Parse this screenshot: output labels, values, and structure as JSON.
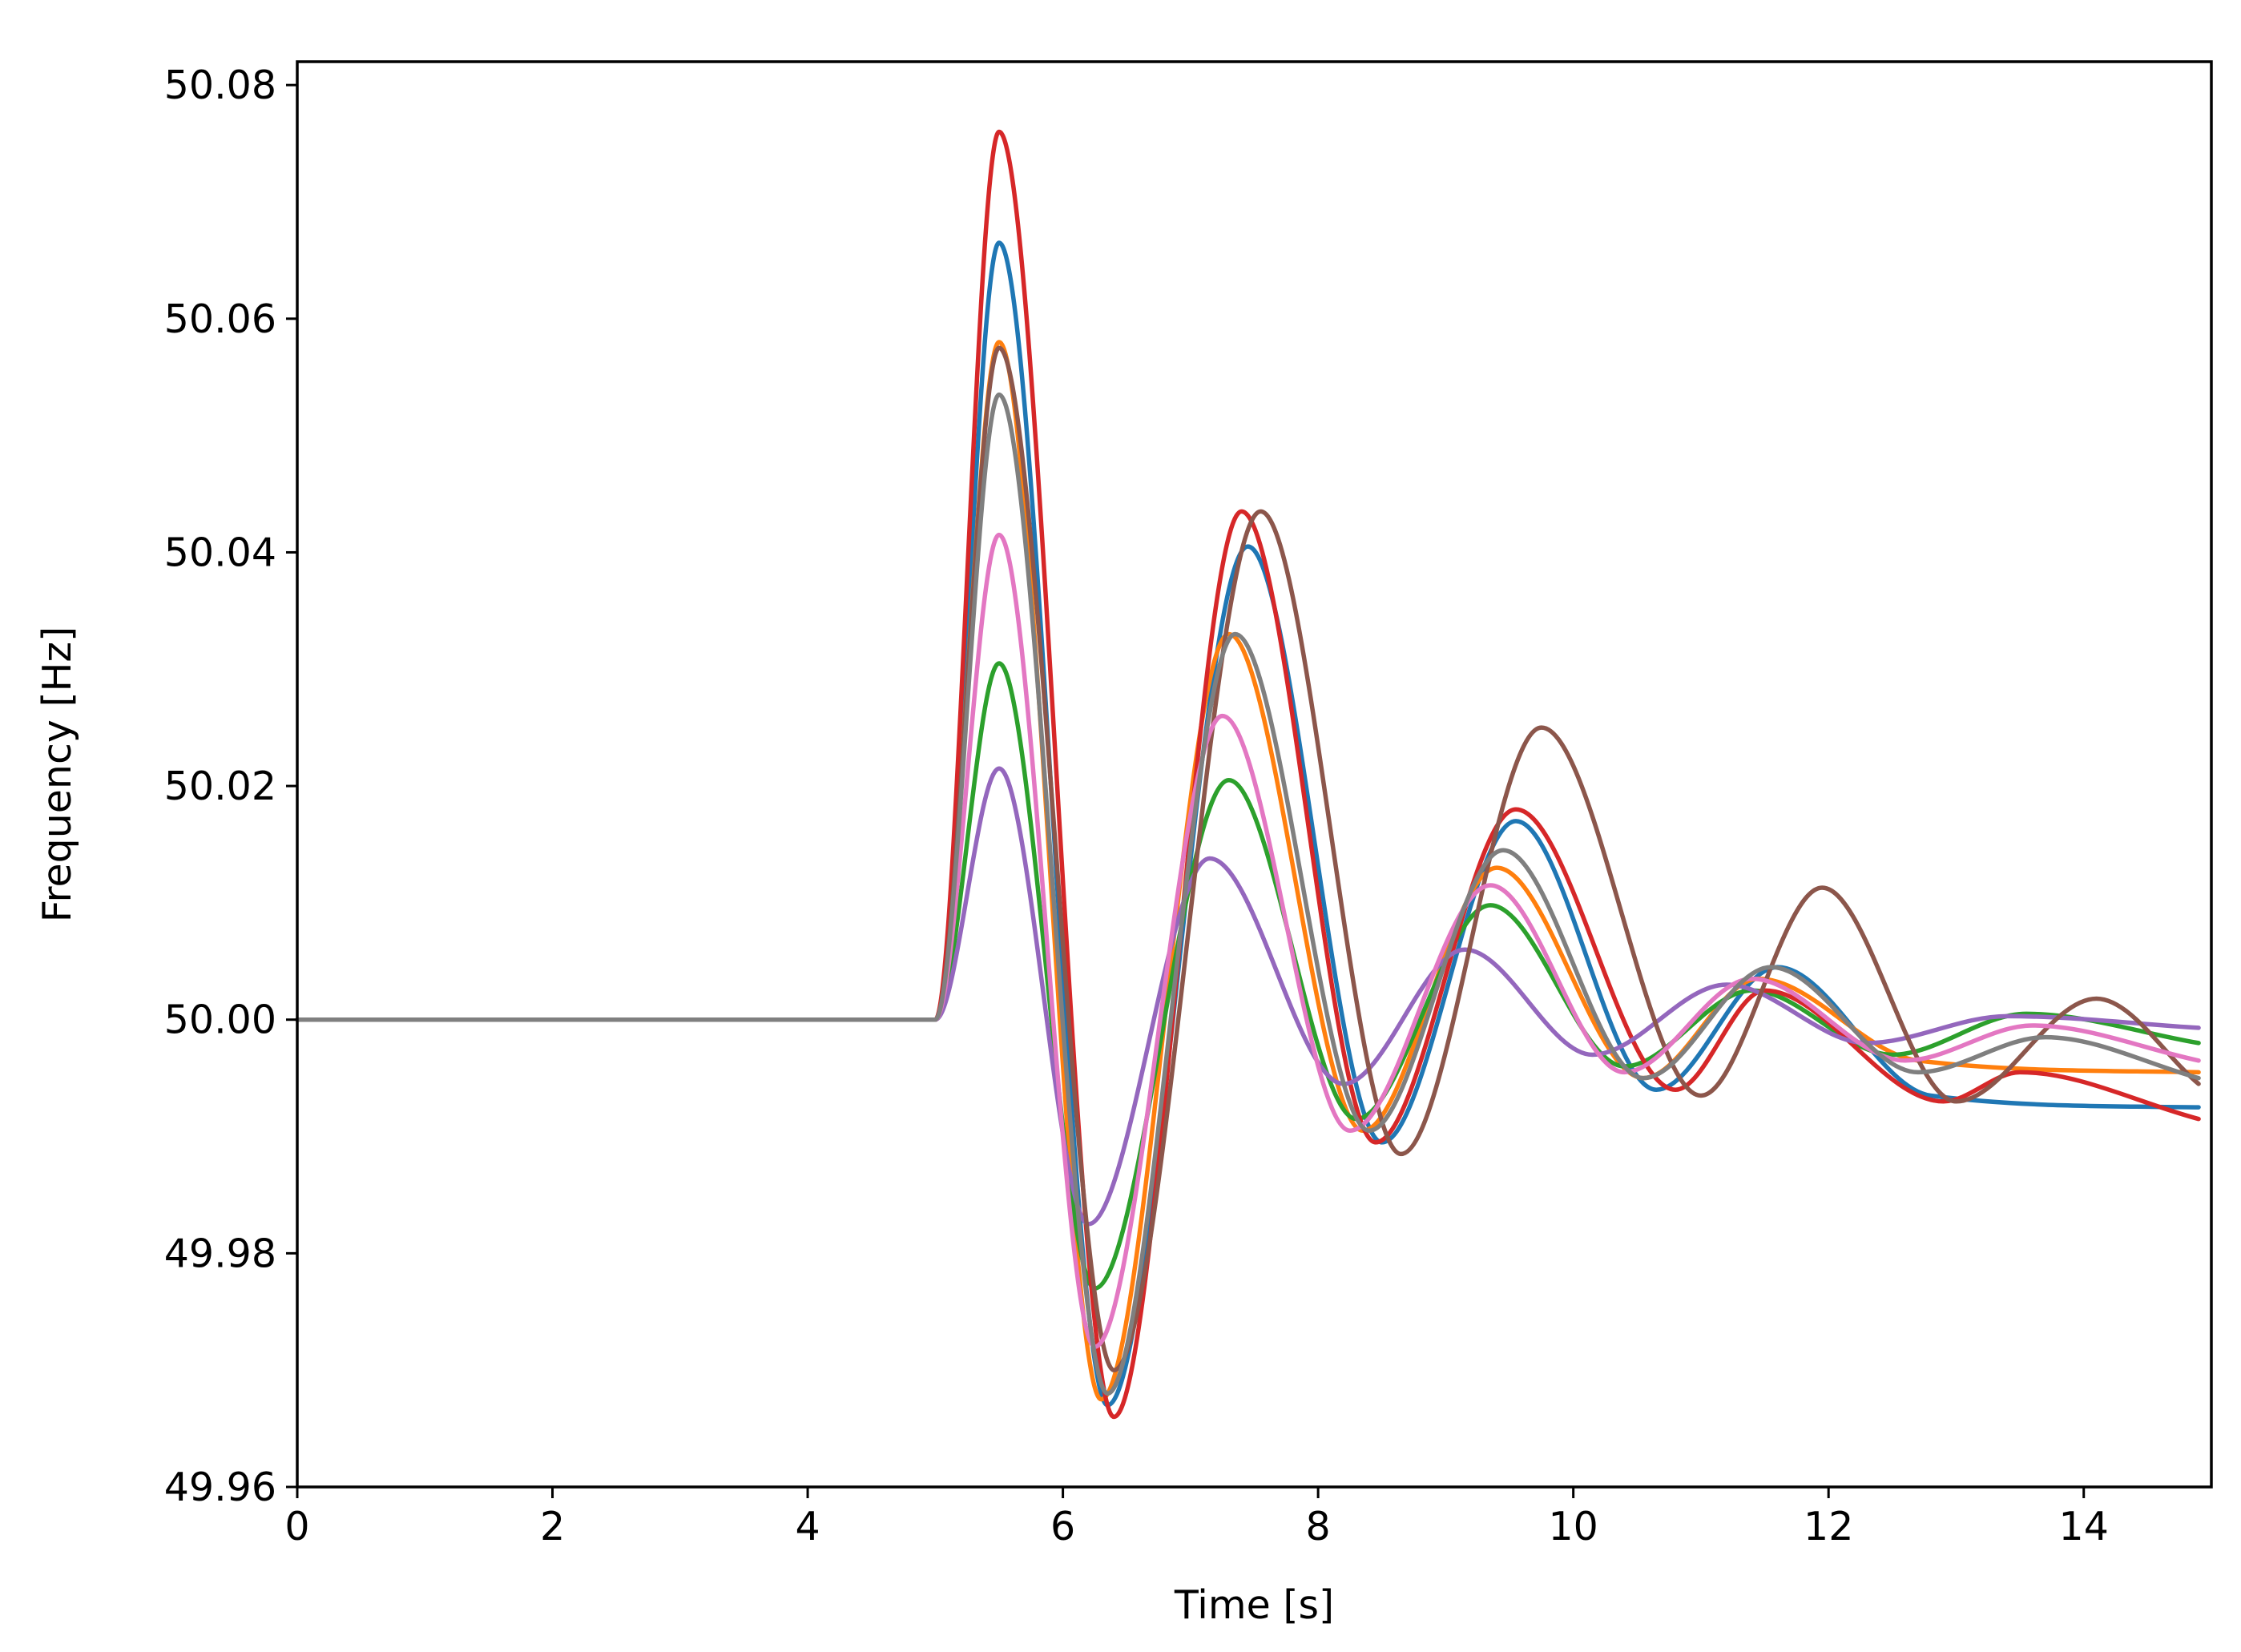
{
  "chart_data": {
    "type": "line",
    "xlabel": "Time [s]",
    "ylabel": "Frequency [Hz]",
    "xlim": [
      0,
      15
    ],
    "ylim": [
      49.96,
      50.082
    ],
    "xticks": [
      0,
      2,
      4,
      6,
      8,
      10,
      12,
      14
    ],
    "xtick_labels": [
      "0",
      "2",
      "4",
      "6",
      "8",
      "10",
      "12",
      "14"
    ],
    "yticks": [
      49.96,
      49.98,
      50.0,
      50.02,
      50.04,
      50.06,
      50.08
    ],
    "ytick_labels": [
      "49.96",
      "49.98",
      "50.00",
      "50.02",
      "50.04",
      "50.06",
      "50.08"
    ],
    "grid": false,
    "legend": "none",
    "series": [
      {
        "color": "#1f77b4",
        "points": [
          [
            0,
            50.0
          ],
          [
            5.0,
            50.0
          ],
          [
            5.5,
            50.0665
          ],
          [
            6.35,
            49.967
          ],
          [
            7.45,
            50.0405
          ],
          [
            8.5,
            49.9895
          ],
          [
            9.55,
            50.017
          ],
          [
            10.65,
            49.994
          ],
          [
            11.6,
            50.0045
          ],
          [
            12.8,
            49.9935
          ],
          [
            14.9,
            49.9925
          ]
        ]
      },
      {
        "color": "#ff7f0e",
        "points": [
          [
            0,
            50.0
          ],
          [
            5.0,
            50.0
          ],
          [
            5.5,
            50.058
          ],
          [
            6.3,
            49.9675
          ],
          [
            7.3,
            50.033
          ],
          [
            8.35,
            49.9905
          ],
          [
            9.4,
            50.013
          ],
          [
            10.55,
            49.995
          ],
          [
            11.45,
            50.0035
          ],
          [
            12.7,
            49.9965
          ],
          [
            14.9,
            49.9955
          ]
        ]
      },
      {
        "color": "#2ca02c",
        "points": [
          [
            0,
            50.0
          ],
          [
            5.0,
            50.0
          ],
          [
            5.5,
            50.0305
          ],
          [
            6.25,
            49.977
          ],
          [
            7.3,
            50.0205
          ],
          [
            8.3,
            49.9915
          ],
          [
            9.35,
            50.0098
          ],
          [
            10.4,
            49.996
          ],
          [
            11.4,
            50.0025
          ],
          [
            12.5,
            49.997
          ],
          [
            13.55,
            50.0005
          ],
          [
            14.9,
            49.998
          ]
        ]
      },
      {
        "color": "#d62728",
        "points": [
          [
            0,
            50.0
          ],
          [
            5.0,
            50.0
          ],
          [
            5.5,
            50.076
          ],
          [
            6.4,
            49.966
          ],
          [
            7.4,
            50.0435
          ],
          [
            8.45,
            49.9895
          ],
          [
            9.55,
            50.018
          ],
          [
            10.8,
            49.994
          ],
          [
            11.5,
            50.0025
          ],
          [
            12.9,
            49.993
          ],
          [
            13.5,
            49.9955
          ],
          [
            14.9,
            49.9915
          ]
        ]
      },
      {
        "color": "#9467bd",
        "points": [
          [
            0,
            50.0
          ],
          [
            5.0,
            50.0
          ],
          [
            5.5,
            50.0215
          ],
          [
            6.2,
            49.9825
          ],
          [
            7.15,
            50.0138
          ],
          [
            8.2,
            49.9945
          ],
          [
            9.15,
            50.006
          ],
          [
            10.15,
            49.997
          ],
          [
            11.2,
            50.003
          ],
          [
            12.3,
            49.998
          ],
          [
            13.4,
            50.0003
          ],
          [
            14.9,
            49.9993
          ]
        ]
      },
      {
        "color": "#8c564b",
        "points": [
          [
            0,
            50.0
          ],
          [
            5.0,
            50.0
          ],
          [
            5.5,
            50.0575
          ],
          [
            6.4,
            49.97
          ],
          [
            7.55,
            50.0435
          ],
          [
            8.65,
            49.9885
          ],
          [
            9.75,
            50.025
          ],
          [
            11.0,
            49.9935
          ],
          [
            11.95,
            50.0113
          ],
          [
            13.0,
            49.993
          ],
          [
            14.1,
            50.0018
          ],
          [
            14.9,
            49.9945
          ]
        ]
      },
      {
        "color": "#e377c2",
        "points": [
          [
            0,
            50.0
          ],
          [
            5.0,
            50.0
          ],
          [
            5.5,
            50.0415
          ],
          [
            6.25,
            49.972
          ],
          [
            7.25,
            50.026
          ],
          [
            8.25,
            49.9905
          ],
          [
            9.35,
            50.0115
          ],
          [
            10.4,
            49.9955
          ],
          [
            11.4,
            50.0035
          ],
          [
            12.6,
            49.9965
          ],
          [
            13.6,
            49.9995
          ],
          [
            14.9,
            49.9965
          ]
        ]
      },
      {
        "color": "#7f7f7f",
        "points": [
          [
            0,
            50.0
          ],
          [
            5.0,
            50.0
          ],
          [
            5.5,
            50.0535
          ],
          [
            6.35,
            49.968
          ],
          [
            7.35,
            50.033
          ],
          [
            8.4,
            49.9905
          ],
          [
            9.45,
            50.0145
          ],
          [
            10.55,
            49.995
          ],
          [
            11.55,
            50.0045
          ],
          [
            12.7,
            49.9955
          ],
          [
            13.7,
            49.9985
          ],
          [
            14.9,
            49.995
          ]
        ]
      }
    ]
  }
}
